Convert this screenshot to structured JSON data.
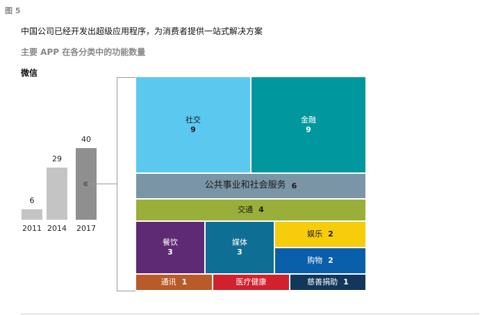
{
  "header": {
    "figure_label": "图 5",
    "headline": "中国公司已经开发出超级应用程序，为消费者提供一站式解决方案",
    "subhead": "主要 APP 在各分类中的功能数量",
    "app_name": "微信"
  },
  "chart_data": [
    {
      "type": "bar",
      "categories": [
        "2011",
        "2014",
        "2017"
      ],
      "values": [
        6,
        29,
        40
      ],
      "colors": [
        "#c4c4c4",
        "#c4c4c4",
        "#8f8f8f"
      ],
      "ylim": [
        0,
        40
      ]
    },
    {
      "type": "treemap",
      "items": [
        {
          "label": "社交",
          "value": 9,
          "color": "#5bc8f0",
          "text_color": "#1a1a1a"
        },
        {
          "label": "金融",
          "value": 9,
          "color": "#00979e",
          "text_color": "#ffffff"
        },
        {
          "label": "公共事业和社会服务",
          "value": 6,
          "color": "#7a96a6",
          "text_color": "#1a1a1a"
        },
        {
          "label": "交通",
          "value": 4,
          "color": "#9aaf3a",
          "text_color": "#1a1a1a"
        },
        {
          "label": "餐饮",
          "value": 3,
          "color": "#5e2a73",
          "text_color": "#ffffff"
        },
        {
          "label": "媒体",
          "value": 3,
          "color": "#0e6e93",
          "text_color": "#ffffff"
        },
        {
          "label": "娱乐",
          "value": 2,
          "color": "#f6cc0b",
          "text_color": "#1a1a1a"
        },
        {
          "label": "购物",
          "value": 2,
          "color": "#0a5faa",
          "text_color": "#ffffff"
        },
        {
          "label": "通讯",
          "value": 1,
          "color": "#b85b28",
          "text_color": "#ffffff"
        },
        {
          "label": "医疗健康",
          "value": 1,
          "color": "#d0212c",
          "text_color": "#ffffff"
        },
        {
          "label": "慈善捐助",
          "value": 1,
          "color": "#12375a",
          "text_color": "#ffffff"
        }
      ]
    }
  ]
}
